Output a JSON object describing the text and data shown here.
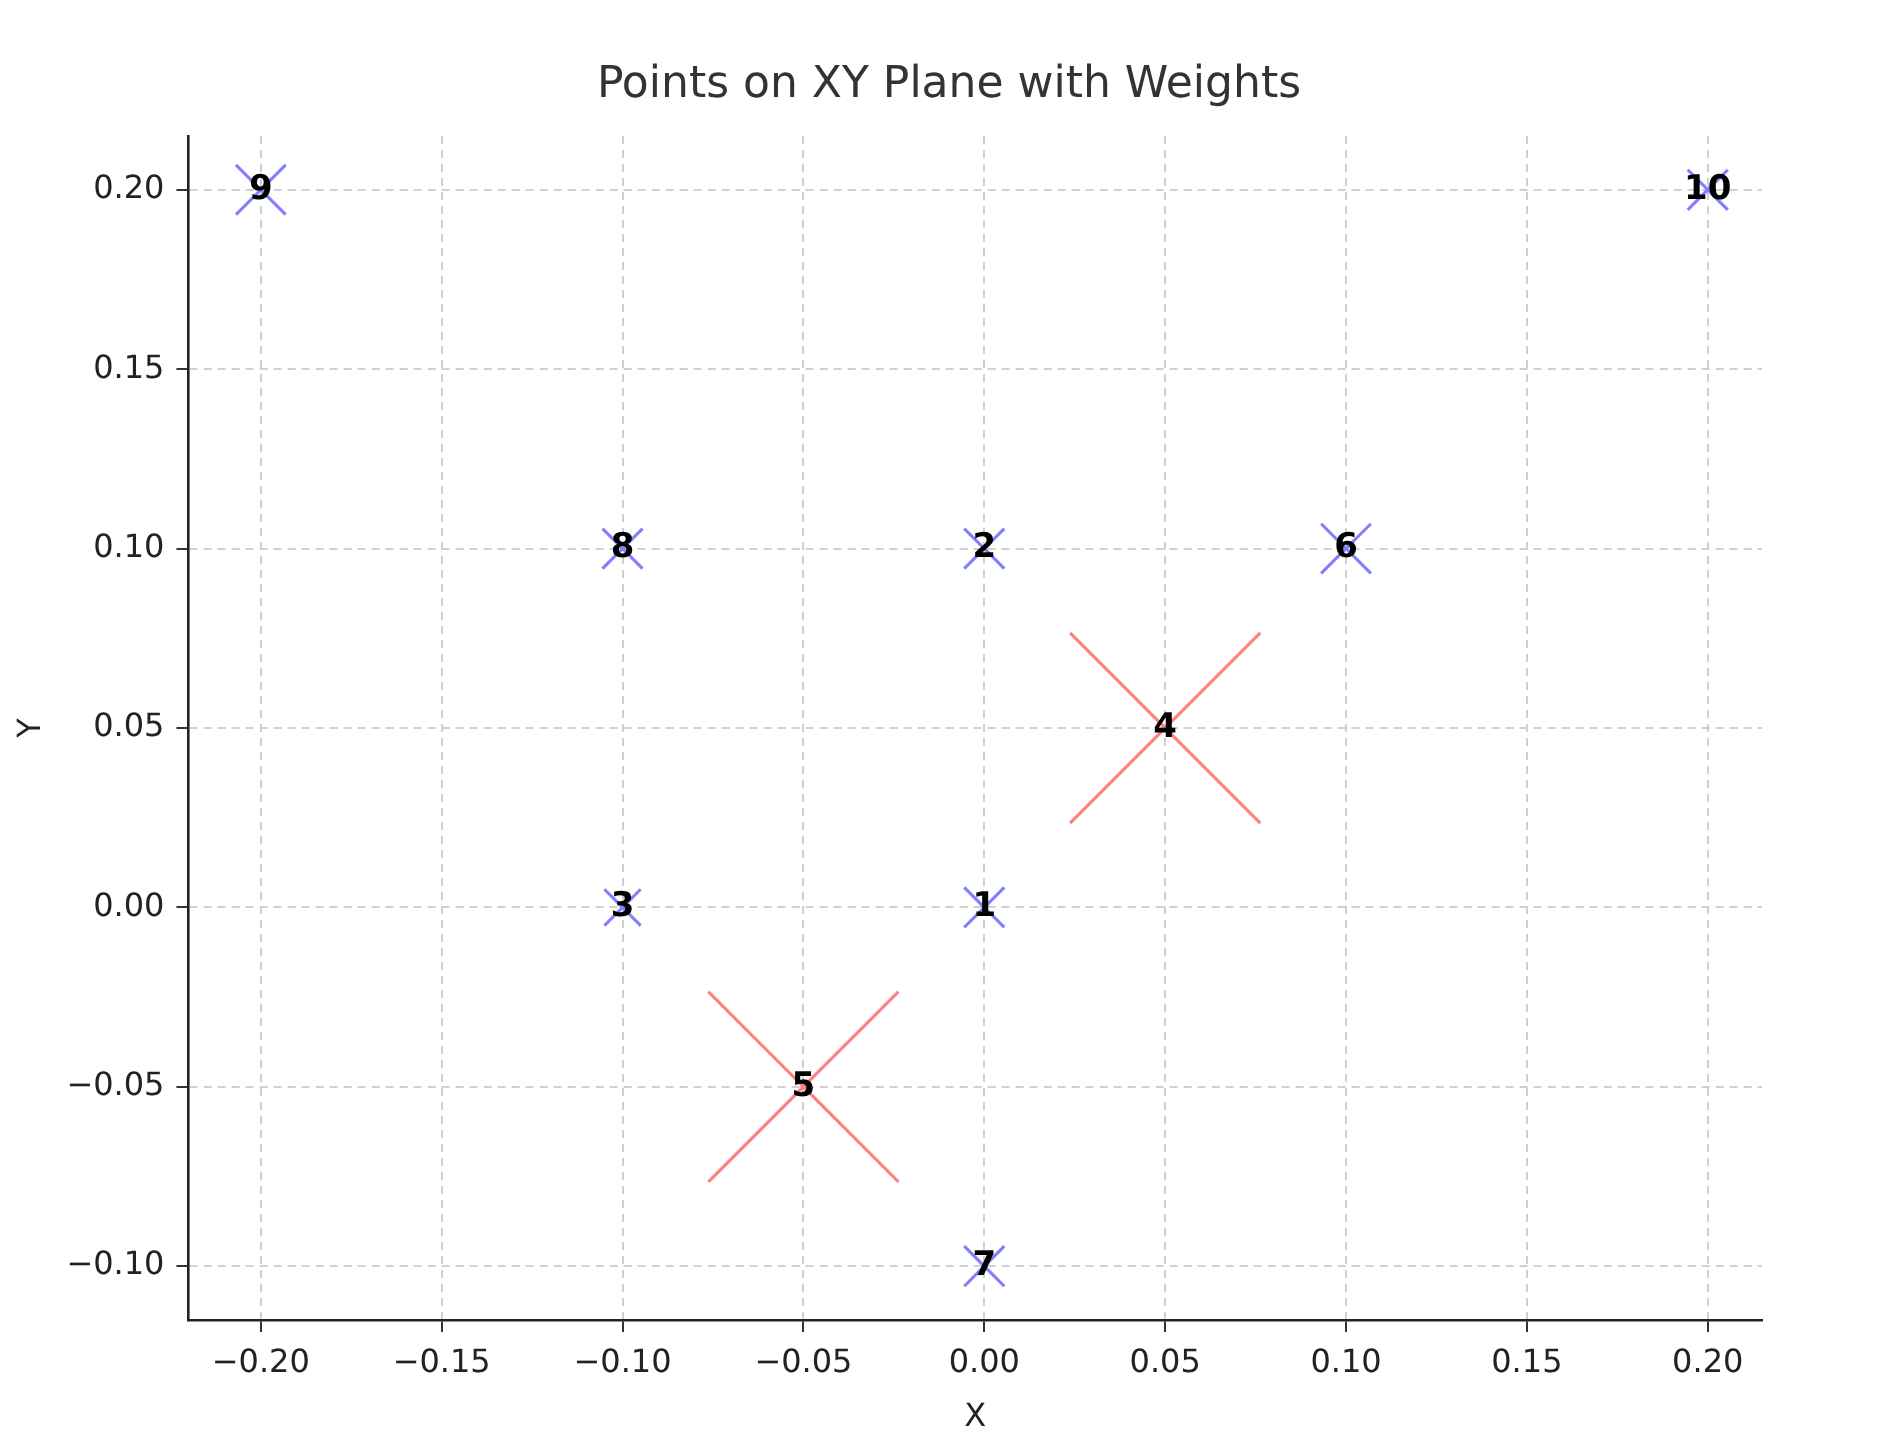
{
  "chart_data": {
    "type": "bubble",
    "title": "Points on XY Plane with Weights",
    "xlabel": "X",
    "ylabel": "Y",
    "x": [
      0,
      0,
      -0.1,
      0.05,
      -0.05,
      0.1,
      0,
      -0.1,
      -0.2,
      0.2
    ],
    "values": [
      0,
      0.1,
      0,
      0.05,
      -0.05,
      0.1,
      -0.1,
      0.1,
      0.2,
      0.2
    ],
    "sizes": [
      0.22,
      0.22,
      0.2,
      1,
      1,
      0.27,
      0.22,
      0.22,
      0.27,
      0.22
    ],
    "colors": [
      "#8080ff",
      "#8080ff",
      "#8080ff",
      "#ff8080",
      "#ff8080",
      "#8080ff",
      "#8080ff",
      "#8080ff",
      "#8080ff",
      "#8080ff"
    ],
    "marker": "cross",
    "grid": true,
    "legend": false,
    "xlim": [
      -0.22,
      0.215
    ],
    "ylim": [
      -0.115,
      0.215
    ],
    "xticks": [
      {
        "value": -0.2,
        "label": "−0.20"
      },
      {
        "value": -0.15,
        "label": "−0.15"
      },
      {
        "value": -0.1,
        "label": "−0.10"
      },
      {
        "value": -0.05,
        "label": "−0.05"
      },
      {
        "value": 0,
        "label": "0.00"
      },
      {
        "value": 0.05,
        "label": "0.05"
      },
      {
        "value": 0.1,
        "label": "0.10"
      },
      {
        "value": 0.15,
        "label": "0.15"
      },
      {
        "value": 0.2,
        "label": "0.20"
      }
    ],
    "yticks": [
      {
        "value": -0.1,
        "label": "−0.10"
      },
      {
        "value": -0.05,
        "label": "−0.05"
      },
      {
        "value": 0,
        "label": "0.00"
      },
      {
        "value": 0.05,
        "label": "0.05"
      },
      {
        "value": 0.1,
        "label": "0.10"
      },
      {
        "value": 0.15,
        "label": "0.15"
      },
      {
        "value": 0.2,
        "label": "0.20"
      }
    ],
    "annotations": [
      {
        "text": "1",
        "x": 0,
        "y": 0
      },
      {
        "text": "2",
        "x": 0,
        "y": 0.1
      },
      {
        "text": "3",
        "x": -0.1,
        "y": 0
      },
      {
        "text": "4",
        "x": 0.05,
        "y": 0.05
      },
      {
        "text": "5",
        "x": -0.05,
        "y": -0.05
      },
      {
        "text": "6",
        "x": 0.1,
        "y": 0.1
      },
      {
        "text": "7",
        "x": 0,
        "y": -0.1
      },
      {
        "text": "8",
        "x": -0.1,
        "y": 0.1
      },
      {
        "text": "9",
        "x": -0.2,
        "y": 0.2
      },
      {
        "text": "10",
        "x": 0.2,
        "y": 0.2
      }
    ]
  }
}
